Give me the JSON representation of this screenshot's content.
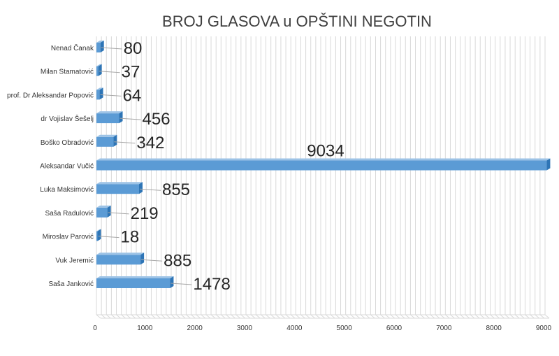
{
  "chart_data": {
    "type": "bar",
    "orientation": "horizontal",
    "title": "BROJ GLASOVA u OPŠTINI NEGOTIN",
    "xlabel": "",
    "ylabel": "",
    "categories": [
      "Nenad Čanak",
      "Milan Stamatović",
      "prof. Dr Aleksandar Popović",
      "dr Vojislav Šešelj",
      "Boško Obradović",
      "Aleksandar Vučić",
      "Luka Maksimović",
      "Saša Radulović",
      "Miroslav Parović",
      "Vuk Jeremić",
      "Saša Janković"
    ],
    "values": [
      80,
      37,
      64,
      456,
      342,
      9034,
      855,
      219,
      18,
      885,
      1478
    ],
    "xlim": [
      0,
      9000
    ],
    "x_ticks": [
      "0",
      "1000",
      "2000",
      "3000",
      "4000",
      "5000",
      "6000",
      "7000",
      "8000",
      "9000"
    ],
    "grid": true,
    "legend": "none",
    "bar_color": "#5b9bd5",
    "bar_side_color": "#2e75b6",
    "bar_top_color": "#9dc3e6",
    "title_color": "#404040",
    "grid_color": "#d9d9d9"
  }
}
